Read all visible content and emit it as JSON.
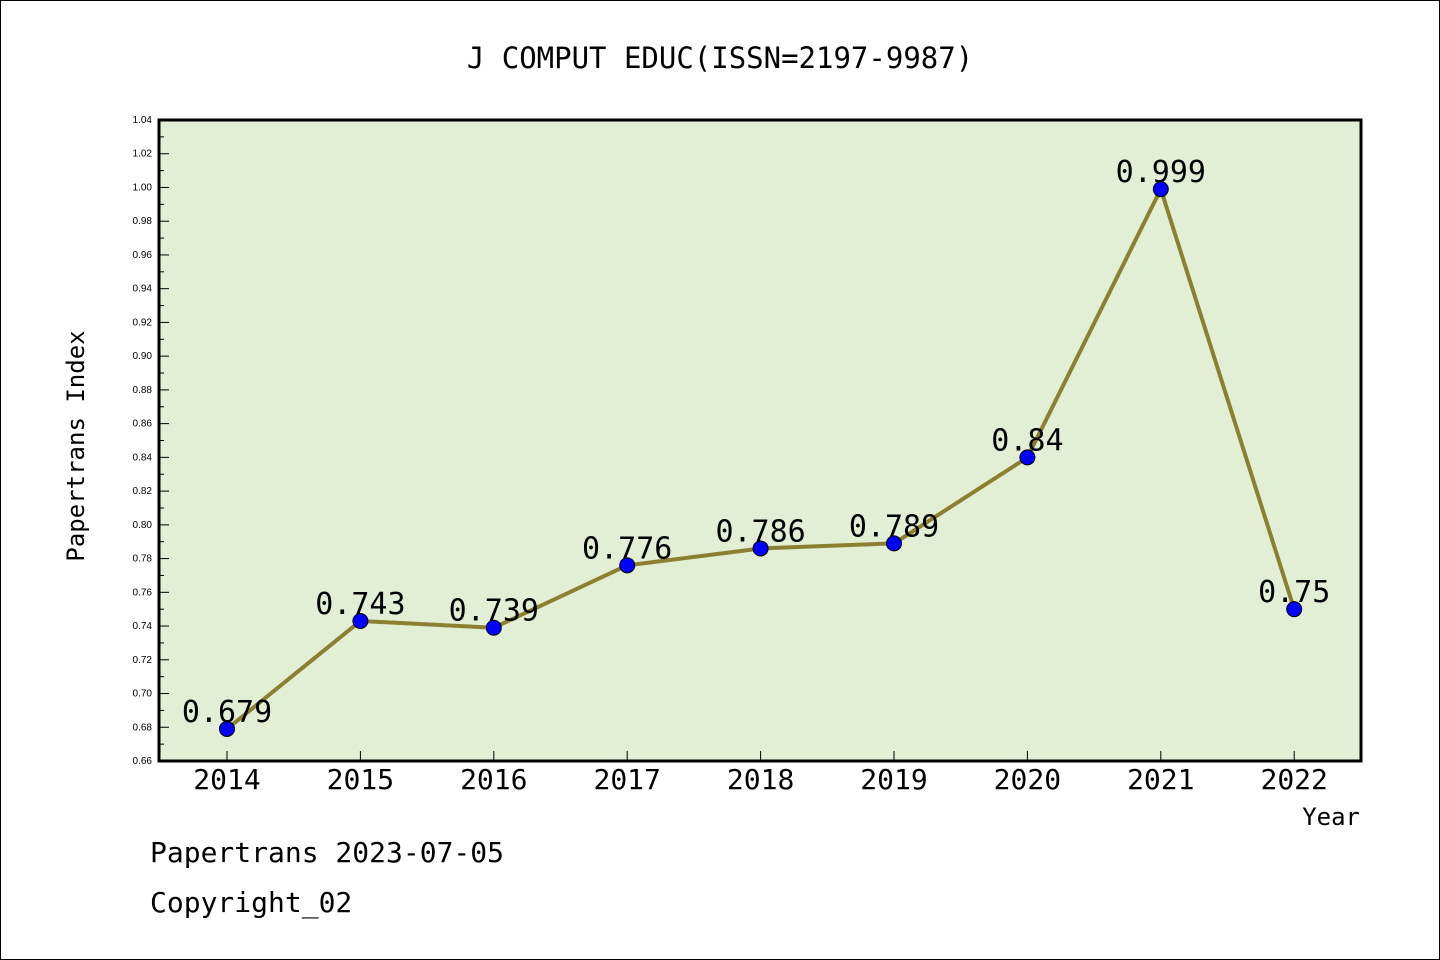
{
  "chart_data": {
    "type": "line",
    "title": "J COMPUT EDUC(ISSN=2197-9987)",
    "xlabel": "Year",
    "ylabel": "Papertrans Index",
    "categories": [
      "2014",
      "2015",
      "2016",
      "2017",
      "2018",
      "2019",
      "2020",
      "2021",
      "2022"
    ],
    "series": [
      {
        "values": [
          0.679,
          0.743,
          0.739,
          0.776,
          0.786,
          0.789,
          0.84,
          0.999,
          0.75
        ],
        "labels": [
          "0.679",
          "0.743",
          "0.739",
          "0.776",
          "0.786",
          "0.789",
          "0.84",
          "0.999",
          "0.75"
        ]
      }
    ],
    "ylim": [
      0.66,
      1.04
    ],
    "yticks": [
      "0.66",
      "0.68",
      "0.70",
      "0.72",
      "0.74",
      "0.76",
      "0.78",
      "0.80",
      "0.82",
      "0.84",
      "0.86",
      "0.88",
      "0.90",
      "0.92",
      "0.94",
      "0.96",
      "0.98",
      "1.00",
      "1.02",
      "1.04"
    ],
    "grid": false,
    "colors": {
      "line": "#8b8030",
      "marker": "#0000ff",
      "plot_background": "#e2efd5"
    }
  },
  "footer": {
    "date_line": "Papertrans 2023-07-05",
    "copyright": "Copyright_02"
  }
}
